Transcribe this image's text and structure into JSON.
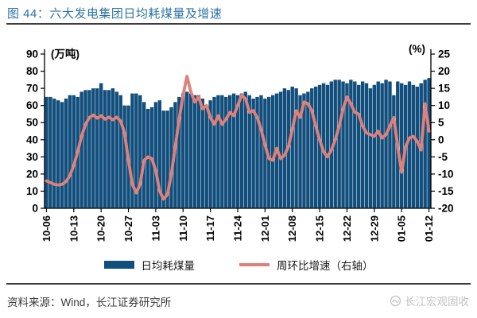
{
  "header": {
    "title": "图 44：六大发电集团日均耗煤量及增速"
  },
  "chart_data": {
    "type": "combo-bar-line",
    "categories": [
      "10-06",
      "10-13",
      "10-20",
      "10-27",
      "11-03",
      "11-10",
      "11-17",
      "11-24",
      "12-01",
      "12-08",
      "12-15",
      "12-22",
      "12-29",
      "01-05",
      "01-12"
    ],
    "x_label_every": 7,
    "left_axis": {
      "label": "(万吨)",
      "min": 0,
      "max": 90,
      "step": 10
    },
    "right_axis": {
      "label": "(%)",
      "min": -20,
      "max": 25,
      "step": 5
    },
    "bar_series": {
      "name": "日均耗煤量",
      "axis": "left",
      "values": [
        65,
        65,
        64,
        63,
        62,
        64,
        66,
        66,
        65,
        68,
        69,
        69,
        70,
        70,
        73,
        69,
        69,
        70,
        68,
        66,
        60,
        60,
        67,
        67,
        66,
        62,
        58,
        59,
        62,
        63,
        57,
        57,
        59,
        62,
        65,
        67,
        68,
        67,
        66,
        66,
        64,
        60,
        63,
        65,
        66,
        66,
        65,
        66,
        67,
        66,
        67,
        68,
        66,
        64,
        65,
        66,
        64,
        65,
        66,
        67,
        68,
        70,
        69,
        71,
        70,
        66,
        67,
        68,
        70,
        71,
        72,
        73,
        72,
        74,
        75,
        75,
        74,
        73,
        75,
        74,
        72,
        74,
        73,
        70,
        72,
        74,
        73,
        75,
        74,
        66,
        74,
        73,
        72,
        74,
        72,
        71,
        73,
        75,
        76
      ]
    },
    "line_series": {
      "name": "周环比增速（右轴）",
      "axis": "right",
      "values": [
        -12,
        -12.5,
        -13,
        -13.2,
        -13,
        -12.2,
        -10.5,
        -7.5,
        -3.5,
        1,
        4.5,
        6.5,
        7.2,
        6.3,
        7,
        6,
        6.6,
        5.8,
        6.6,
        5.5,
        2,
        -6,
        -13,
        -15.5,
        -13,
        -6,
        -5,
        -5.5,
        -9,
        -15,
        -17.3,
        -16,
        -10,
        -2,
        6,
        13,
        18.5,
        14,
        11,
        12.5,
        9,
        10,
        6.5,
        4.5,
        7,
        4.5,
        6,
        8,
        7,
        10,
        13,
        12,
        8,
        8.5,
        6.5,
        3,
        -1.5,
        -5.5,
        -6,
        -2.5,
        -5.5,
        -4.5,
        -2,
        3,
        8.5,
        6.5,
        11,
        10.5,
        8.5,
        4,
        0,
        -3.5,
        -5,
        -3,
        0,
        4,
        9,
        12.5,
        10.5,
        8,
        7.5,
        4,
        2,
        1.5,
        1,
        2.5,
        0.5,
        1.5,
        4,
        6.5,
        -2,
        -9.5,
        -2,
        0.5,
        1,
        -0.5,
        -3,
        10.5,
        2.5
      ]
    },
    "colors": {
      "bar": "#124F7D",
      "line": "#E0807A"
    },
    "legend_position": "bottom"
  },
  "legend": {
    "bar_label": "日均耗煤量",
    "line_label": "周环比增速（右轴）"
  },
  "footer": {
    "source": "资料来源：Wind，长江证券研究所",
    "watermark": "长江宏观固收"
  }
}
